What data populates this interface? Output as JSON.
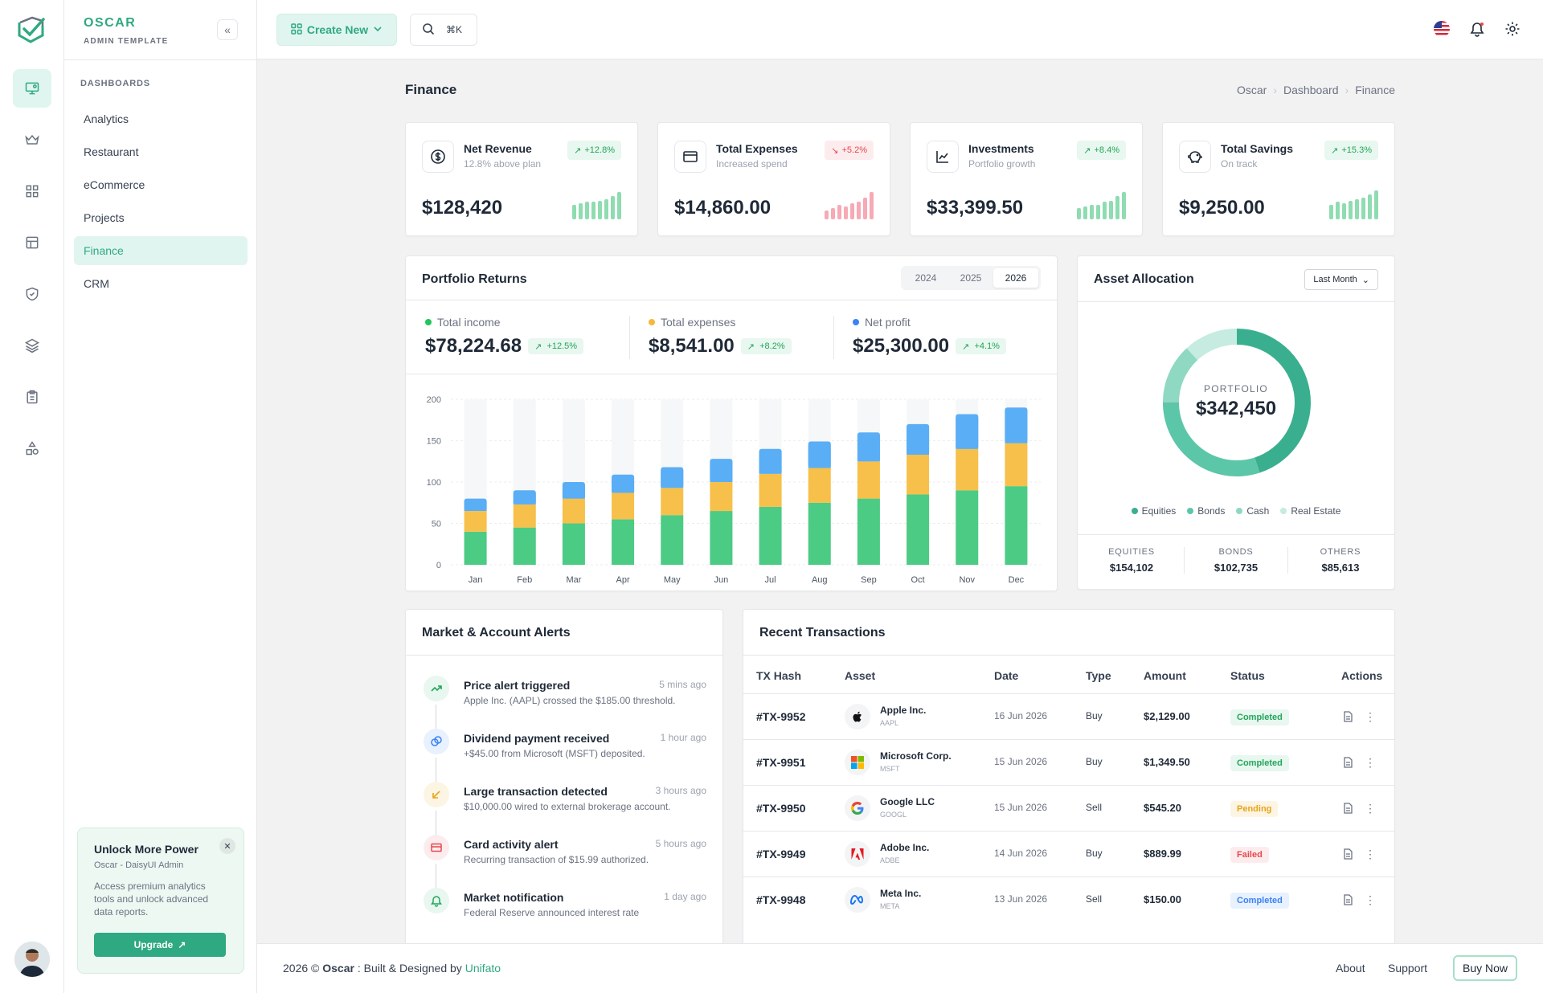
{
  "brand": {
    "name": "OSCAR",
    "subtitle": "ADMIN TEMPLATE"
  },
  "sidebar": {
    "section": "DASHBOARDS",
    "items": [
      {
        "label": "Analytics"
      },
      {
        "label": "Restaurant"
      },
      {
        "label": "eCommerce"
      },
      {
        "label": "Projects"
      },
      {
        "label": "Finance",
        "active": true
      },
      {
        "label": "CRM"
      }
    ],
    "rail_icons": [
      "monitor-icon",
      "crown-icon",
      "grid-icon",
      "layout-icon",
      "shield-check-icon",
      "layers-icon",
      "clipboard-icon",
      "shapes-icon"
    ],
    "promo": {
      "title": "Unlock More Power",
      "subtitle": "Oscar - DaisyUI Admin",
      "description": "Access premium analytics tools and unlock advanced data reports.",
      "button": "Upgrade"
    }
  },
  "topbar": {
    "create_label": "Create New",
    "search_shortcut": "⌘K"
  },
  "page": {
    "title": "Finance",
    "breadcrumb": [
      "Oscar",
      "Dashboard",
      "Finance"
    ]
  },
  "stats": [
    {
      "title": "Net Revenue",
      "subtitle": "12.8% above plan",
      "badge": "+12.8%",
      "trend": "up",
      "value": "$128,420",
      "icon": "dollar-circle-icon",
      "spark": [
        0.5,
        0.55,
        0.6,
        0.6,
        0.65,
        0.7,
        0.8,
        0.95
      ]
    },
    {
      "title": "Total Expenses",
      "subtitle": "Increased spend",
      "badge": "+5.2%",
      "trend": "down",
      "value": "$14,860.00",
      "icon": "credit-card-icon",
      "spark": [
        0.3,
        0.4,
        0.5,
        0.45,
        0.55,
        0.6,
        0.75,
        0.95
      ]
    },
    {
      "title": "Investments",
      "subtitle": "Portfolio growth",
      "badge": "+8.4%",
      "trend": "up",
      "value": "$33,399.50",
      "icon": "line-chart-icon",
      "spark": [
        0.4,
        0.45,
        0.5,
        0.5,
        0.6,
        0.65,
        0.8,
        0.95
      ]
    },
    {
      "title": "Total Savings",
      "subtitle": "On track",
      "badge": "+15.3%",
      "trend": "up",
      "value": "$9,250.00",
      "icon": "piggy-bank-icon",
      "spark": [
        0.5,
        0.6,
        0.55,
        0.65,
        0.7,
        0.75,
        0.85,
        1.0
      ]
    }
  ],
  "portfolio": {
    "title": "Portfolio Returns",
    "years": [
      "2024",
      "2025",
      "2026"
    ],
    "active_year": "2026",
    "summary": [
      {
        "label": "Total income",
        "value": "$78,224.68",
        "badge": "+12.5%",
        "color": "#22c55e"
      },
      {
        "label": "Total expenses",
        "value": "$8,541.00",
        "badge": "+8.2%",
        "color": "#f5b83d"
      },
      {
        "label": "Net profit",
        "value": "$25,300.00",
        "badge": "+4.1%",
        "color": "#3b82f6"
      }
    ]
  },
  "chart_data": {
    "type": "bar",
    "stacked": true,
    "categories": [
      "Jan",
      "Feb",
      "Mar",
      "Apr",
      "May",
      "Jun",
      "Jul",
      "Aug",
      "Sep",
      "Oct",
      "Nov",
      "Dec"
    ],
    "series": [
      {
        "values": [
          40,
          45,
          50,
          55,
          60,
          65,
          70,
          75,
          80,
          85,
          90,
          95
        ],
        "color": "#4ccb85"
      },
      {
        "values": [
          25,
          28,
          30,
          32,
          33,
          35,
          40,
          42,
          45,
          48,
          50,
          52
        ],
        "color": "#f7c04a"
      },
      {
        "values": [
          15,
          17,
          20,
          22,
          25,
          28,
          30,
          32,
          35,
          37,
          42,
          43
        ],
        "color": "#5aaef5"
      }
    ],
    "yticks": [
      0,
      50,
      100,
      150,
      200
    ],
    "ylim": [
      0,
      200
    ],
    "background_bar": 200,
    "colors": {
      "background_bar": "#f6f7f8"
    }
  },
  "allocation": {
    "title": "Asset Allocation",
    "period": "Last Month",
    "center_label": "PORTFOLIO",
    "center_value": "$342,450",
    "segments": [
      {
        "label": "Equities",
        "value": 154102,
        "color": "#3aaf8f"
      },
      {
        "label": "Bonds",
        "value": 102735,
        "color": "#5cc6a8"
      },
      {
        "label": "Cash",
        "value": 45000,
        "color": "#8fd8c2"
      },
      {
        "label": "Real Estate",
        "value": 40613,
        "color": "#c6ebe0"
      }
    ],
    "totals": [
      {
        "label": "EQUITIES",
        "value": "$154,102"
      },
      {
        "label": "BONDS",
        "value": "$102,735"
      },
      {
        "label": "OTHERS",
        "value": "$85,613"
      }
    ]
  },
  "alerts": {
    "title": "Market & Account Alerts",
    "items": [
      {
        "title": "Price alert triggered",
        "time": "5 mins ago",
        "desc": "Apple Inc. (AAPL) crossed the $185.00 threshold.",
        "icon": "trending-up-icon",
        "color": "#22a55a",
        "bg": "#e8f7ef"
      },
      {
        "title": "Dividend payment received",
        "time": "1 hour ago",
        "desc": "+$45.00 from Microsoft (MSFT) deposited.",
        "icon": "coins-icon",
        "color": "#3b82f6",
        "bg": "#e8f1fe"
      },
      {
        "title": "Large transaction detected",
        "time": "3 hours ago",
        "desc": "$10,000.00 wired to external brokerage account.",
        "icon": "arrow-down-left-icon",
        "color": "#e9a317",
        "bg": "#fdf5e3"
      },
      {
        "title": "Card activity alert",
        "time": "5 hours ago",
        "desc": "Recurring transaction of $15.99 authorized.",
        "icon": "credit-card-icon",
        "color": "#e5484d",
        "bg": "#fdecee"
      },
      {
        "title": "Market notification",
        "time": "1 day ago",
        "desc": "Federal Reserve announced interest rate",
        "icon": "bell-icon",
        "color": "#22a55a",
        "bg": "#e8f7ef"
      }
    ]
  },
  "transactions": {
    "title": "Recent Transactions",
    "columns": [
      "TX Hash",
      "Asset",
      "Date",
      "Type",
      "Amount",
      "Status",
      "Actions"
    ],
    "rows": [
      {
        "hash": "#TX-9952",
        "asset": "Apple Inc.",
        "ticker": "AAPL",
        "date": "16 Jun 2026",
        "type": "Buy",
        "amount": "$2,129.00",
        "status": "Completed",
        "logo": "apple-logo-icon"
      },
      {
        "hash": "#TX-9951",
        "asset": "Microsoft Corp.",
        "ticker": "MSFT",
        "date": "15 Jun 2026",
        "type": "Buy",
        "amount": "$1,349.50",
        "status": "Completed",
        "logo": "microsoft-logo-icon"
      },
      {
        "hash": "#TX-9950",
        "asset": "Google LLC",
        "ticker": "GOOGL",
        "date": "15 Jun 2026",
        "type": "Sell",
        "amount": "$545.20",
        "status": "Pending",
        "logo": "google-logo-icon"
      },
      {
        "hash": "#TX-9949",
        "asset": "Adobe Inc.",
        "ticker": "ADBE",
        "date": "14 Jun 2026",
        "type": "Buy",
        "amount": "$889.99",
        "status": "Failed",
        "logo": "adobe-logo-icon"
      },
      {
        "hash": "#TX-9948",
        "asset": "Meta Inc.",
        "ticker": "META",
        "date": "13 Jun 2026",
        "type": "Sell",
        "amount": "$150.00",
        "status": "Completed",
        "logo": "meta-logo-icon"
      }
    ],
    "status_colors": {
      "Completed": {
        "fg": "#22a55a",
        "bg": "#e8f7ef"
      },
      "Pending": {
        "fg": "#e9a317",
        "bg": "#fdf5e3"
      },
      "Failed": {
        "fg": "#e5484d",
        "bg": "#fdecee"
      },
      "Completed-blue": {
        "fg": "#3b82f6",
        "bg": "#e8f1fe"
      }
    }
  },
  "footer": {
    "year": "2026 ©",
    "brand": "Oscar",
    "built_by": ": Built & Designed by",
    "company": "Unifato",
    "links": [
      "About",
      "Support"
    ],
    "buy": "Buy Now"
  }
}
